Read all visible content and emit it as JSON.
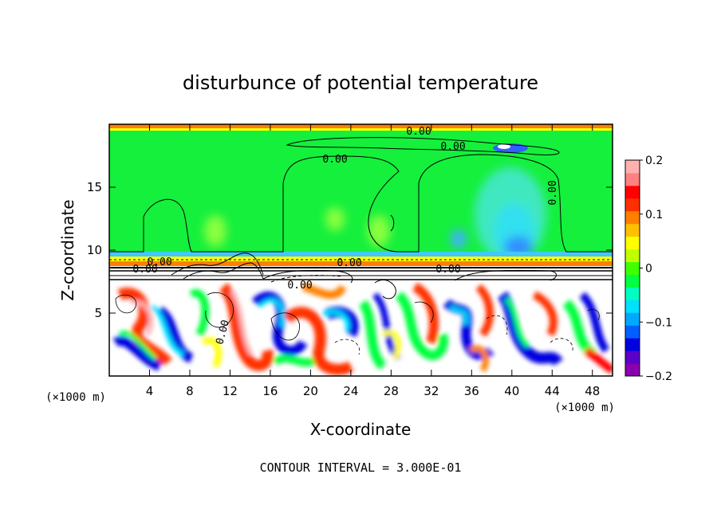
{
  "chart_data": {
    "type": "heatmap",
    "title": "disturbunce of potential temperature",
    "xlabel": "X-coordinate",
    "ylabel": "Z-coordinate",
    "x_unit": "(×1000 m)",
    "y_unit": "(×1000 m)",
    "xlim": [
      0,
      50
    ],
    "ylim": [
      0,
      20
    ],
    "x_ticks": [
      4,
      8,
      12,
      16,
      20,
      24,
      28,
      32,
      36,
      40,
      44,
      48
    ],
    "y_ticks": [
      5,
      10,
      15
    ],
    "colorbar": {
      "range": [
        -0.2,
        0.2
      ],
      "ticks": [
        -0.2,
        -0.1,
        0,
        0.1,
        0.2
      ],
      "tick_labels": [
        "−0.2",
        "−0.1",
        "0",
        "0.1",
        "0.2"
      ],
      "colors": [
        "#8a00b0",
        "#5a00c8",
        "#0000e0",
        "#0060ff",
        "#00a8ff",
        "#00e0ff",
        "#00ffc0",
        "#00ff40",
        "#40ff00",
        "#c0ff00",
        "#ffff00",
        "#ffc000",
        "#ff8000",
        "#ff3000",
        "#ff0000",
        "#ff8080",
        "#ffb0b0"
      ]
    },
    "contour_labels": [
      "0.00",
      "0.00",
      "0.00",
      "0.00",
      "0.00",
      "0.00",
      "0.00",
      "0.00",
      "0.00",
      "0.00"
    ],
    "footer": "CONTOUR INTERVAL = 3.000E-01"
  }
}
